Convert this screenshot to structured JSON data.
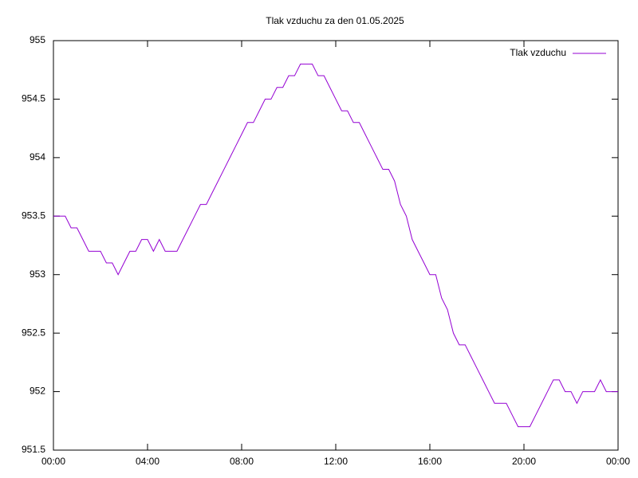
{
  "chart_data": {
    "type": "line",
    "title": "Tlak vzduchu za den 01.05.2025",
    "x": [
      0,
      0.25,
      0.5,
      0.75,
      1,
      1.25,
      1.5,
      1.75,
      2,
      2.25,
      2.5,
      2.75,
      3,
      3.25,
      3.5,
      3.75,
      4,
      4.25,
      4.5,
      4.75,
      5,
      5.25,
      5.5,
      5.75,
      6,
      6.25,
      6.5,
      6.75,
      7,
      7.25,
      7.5,
      7.75,
      8,
      8.25,
      8.5,
      8.75,
      9,
      9.25,
      9.5,
      9.75,
      10,
      10.25,
      10.5,
      10.75,
      11,
      11.25,
      11.5,
      11.75,
      12,
      12.25,
      12.5,
      12.75,
      13,
      13.25,
      13.5,
      13.75,
      14,
      14.25,
      14.5,
      14.75,
      15,
      15.25,
      15.5,
      15.75,
      16,
      16.25,
      16.5,
      16.75,
      17,
      17.25,
      17.5,
      17.75,
      18,
      18.25,
      18.5,
      18.75,
      19,
      19.25,
      19.5,
      19.75,
      20,
      20.25,
      20.5,
      20.75,
      21,
      21.25,
      21.5,
      21.75,
      22,
      22.25,
      22.5,
      22.75,
      23,
      23.25,
      23.5,
      23.75,
      24
    ],
    "series": [
      {
        "name": "Tlak vzduchu",
        "color": "#9400d3",
        "values": [
          953.5,
          953.5,
          953.5,
          953.4,
          953.4,
          953.3,
          953.2,
          953.2,
          953.2,
          953.1,
          953.1,
          953.0,
          953.1,
          953.2,
          953.2,
          953.3,
          953.3,
          953.2,
          953.3,
          953.2,
          953.2,
          953.2,
          953.3,
          953.4,
          953.5,
          953.6,
          953.6,
          953.7,
          953.8,
          953.9,
          954.0,
          954.1,
          954.2,
          954.3,
          954.3,
          954.4,
          954.5,
          954.5,
          954.6,
          954.6,
          954.7,
          954.7,
          954.8,
          954.8,
          954.8,
          954.7,
          954.7,
          954.6,
          954.5,
          954.4,
          954.4,
          954.3,
          954.3,
          954.2,
          954.1,
          954.0,
          953.9,
          953.9,
          953.8,
          953.6,
          953.5,
          953.3,
          953.2,
          953.1,
          953.0,
          953.0,
          952.8,
          952.7,
          952.5,
          952.4,
          952.4,
          952.3,
          952.2,
          952.1,
          952.0,
          951.9,
          951.9,
          951.9,
          951.8,
          951.7,
          951.7,
          951.7,
          951.8,
          951.9,
          952.0,
          952.1,
          952.1,
          952.0,
          952.0,
          951.9,
          952.0,
          952.0,
          952.0,
          952.1,
          952.0,
          952.0,
          952.0
        ]
      }
    ],
    "xlim": [
      0,
      24
    ],
    "xticks": [
      {
        "value": 0,
        "label": "00:00"
      },
      {
        "value": 4,
        "label": "04:00"
      },
      {
        "value": 8,
        "label": "08:00"
      },
      {
        "value": 12,
        "label": "12:00"
      },
      {
        "value": 16,
        "label": "16:00"
      },
      {
        "value": 20,
        "label": "20:00"
      },
      {
        "value": 24,
        "label": "00:00"
      }
    ],
    "ylim": [
      951.5,
      955
    ],
    "yticks": [
      951.5,
      952,
      952.5,
      953,
      953.5,
      954,
      954.5,
      955
    ],
    "legend": "upper right",
    "grid": false
  }
}
